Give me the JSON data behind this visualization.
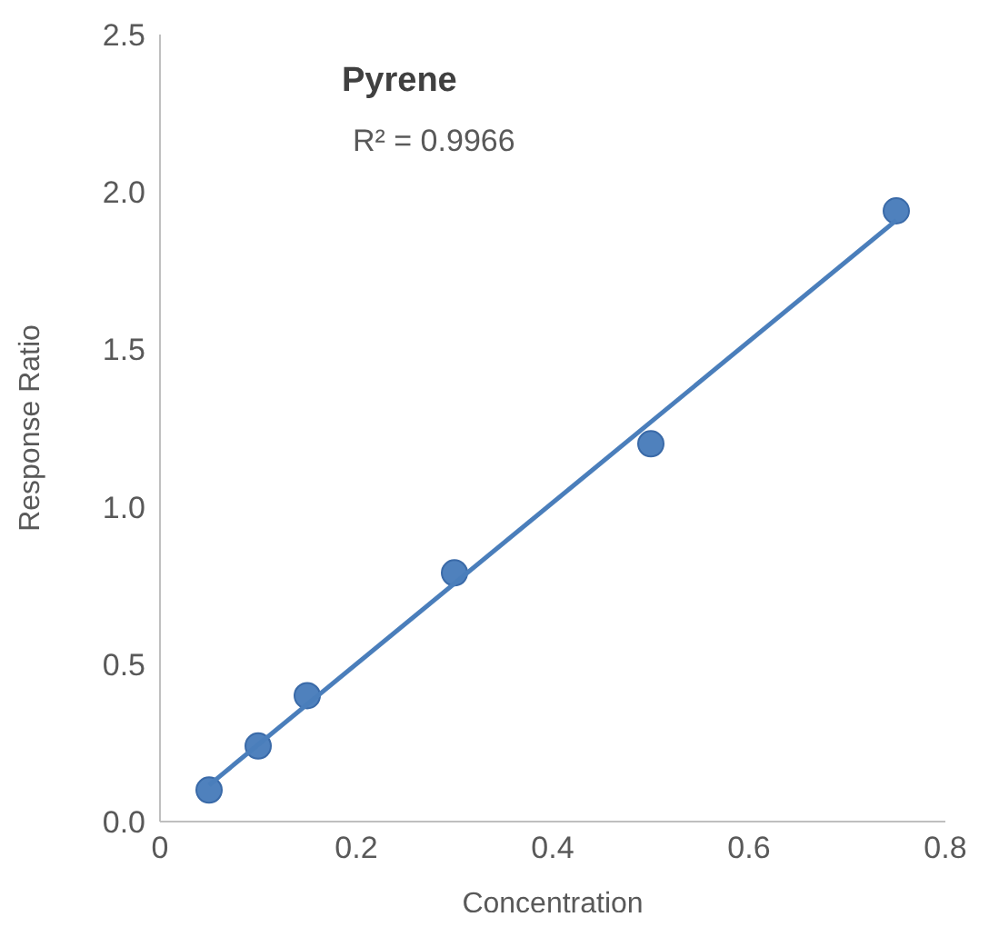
{
  "chart_data": {
    "type": "scatter",
    "title": "Pyrene",
    "xlabel": "Concentration",
    "ylabel": "Response Ratio",
    "annotations": [
      "R² = 0.9966"
    ],
    "series": [
      {
        "color": "#4f81bd",
        "x": [
          0.05,
          0.1,
          0.15,
          0.3,
          0.5,
          0.75
        ],
        "values": [
          0.1,
          0.24,
          0.4,
          0.79,
          1.2,
          1.94
        ]
      },
      {
        "type": "line",
        "marker": "none",
        "color": "#4a7ebb",
        "x": [
          0.05,
          0.75
        ],
        "values": [
          0.116,
          1.91
        ]
      }
    ],
    "marker": "circle",
    "grid": false,
    "legend": false,
    "xlim": [
      0,
      0.8
    ],
    "xticks": [
      0,
      0.2,
      0.4,
      0.6,
      0.8
    ],
    "ylim": [
      0,
      2.5
    ],
    "yticks": [
      {
        "value": 0,
        "label": "0.0"
      },
      {
        "value": 0.5,
        "label": "0.5"
      },
      {
        "value": 1,
        "label": "1.0"
      },
      {
        "value": 1.5,
        "label": "1.5"
      },
      {
        "value": 2,
        "label": "2.0"
      },
      {
        "value": 2.5,
        "label": "2.5"
      }
    ]
  }
}
